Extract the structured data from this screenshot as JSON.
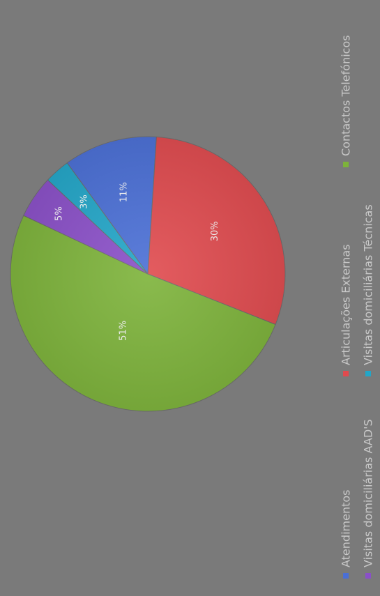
{
  "chart_data": {
    "type": "pie",
    "title": "",
    "legend_position": "bottom",
    "orientation": "rotated-90",
    "categories": [
      "Atendimentos",
      "Articulações Externas",
      "Contactos Telefónicos",
      "Visitas domiciliárias AAD'S",
      "Visitas domiciliárias Técnicas"
    ],
    "values": [
      11,
      30,
      51,
      5,
      3
    ],
    "labels": [
      "11%",
      "30%",
      "51%",
      "5%",
      "3%"
    ],
    "colors": [
      "#4a6fd6",
      "#e04a4e",
      "#7db33a",
      "#8a4fc8",
      "#22a6c8"
    ]
  }
}
